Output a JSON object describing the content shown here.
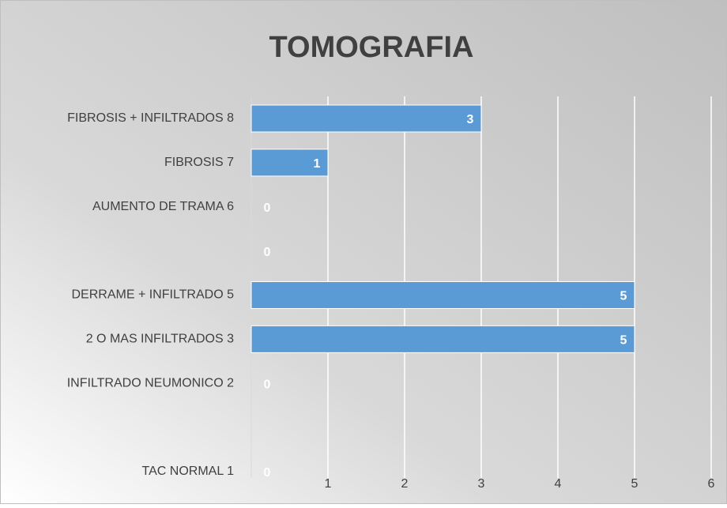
{
  "chart_data": {
    "type": "bar",
    "orientation": "horizontal",
    "title": "TOMOGRAFIA",
    "categories": [
      "FIBROSIS + INFILTRADOS 8",
      "FIBROSIS 7",
      "AUMENTO DE TRAMA 6",
      null,
      "DERRAME + INFILTRADO 5",
      "2 O MAS INFILTRADOS 3",
      "INFILTRADO NEUMONICO 2",
      null,
      "TAC NORMAL 1"
    ],
    "values": [
      3,
      1,
      0,
      0,
      5,
      5,
      0,
      null,
      0
    ],
    "color": "#5b9bd5",
    "xlim": [
      0,
      6
    ],
    "xticks": [
      1,
      2,
      3,
      4,
      5,
      6
    ],
    "grid": true
  }
}
